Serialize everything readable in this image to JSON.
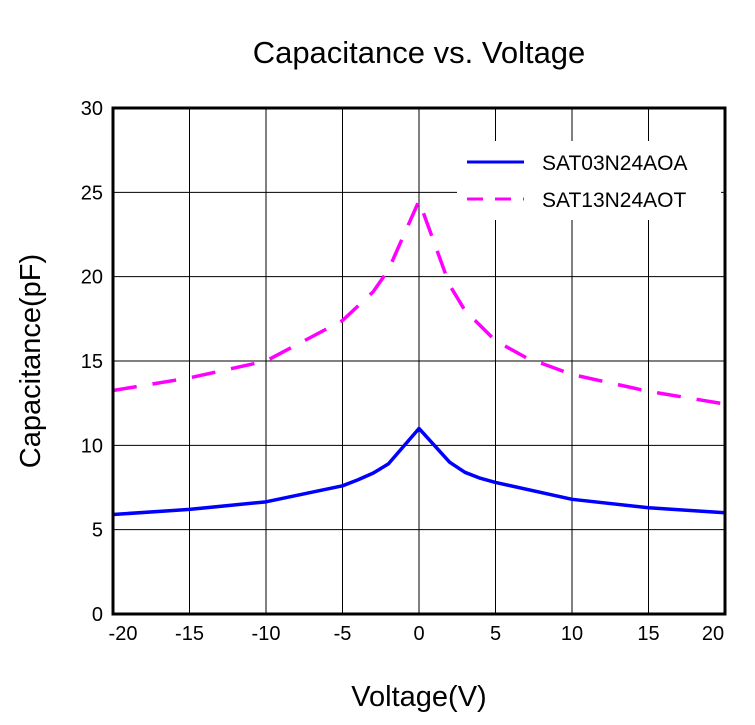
{
  "chart_data": {
    "type": "line",
    "title": "Capacitance vs. Voltage",
    "xlabel": "Voltage(V)",
    "ylabel": "Capacitance(pF)",
    "xlim": [
      -20,
      20
    ],
    "ylim": [
      0,
      30
    ],
    "xticks": [
      -20,
      -15,
      -10,
      -5,
      0,
      5,
      10,
      15,
      20
    ],
    "yticks": [
      0,
      5,
      10,
      15,
      20,
      25,
      30
    ],
    "grid": true,
    "legend_position": "top-right",
    "series": [
      {
        "name": "SAT03N24AOA",
        "color": "#0000ff",
        "style": "solid",
        "x": [
          -20,
          -15,
          -10,
          -5,
          -4,
          -3,
          -2,
          0,
          2,
          3,
          4,
          5,
          10,
          15,
          20
        ],
        "y": [
          5.9,
          6.2,
          6.65,
          7.6,
          7.95,
          8.35,
          8.9,
          11.0,
          9.0,
          8.4,
          8.05,
          7.8,
          6.8,
          6.3,
          6.0
        ]
      },
      {
        "name": "SAT13N24AOT",
        "color": "#ff00ff",
        "style": "dashed",
        "x": [
          -20,
          -15,
          -10,
          -5,
          -3,
          -2,
          0,
          2,
          3,
          5,
          7,
          10,
          15,
          20
        ],
        "y": [
          13.25,
          14.0,
          15.0,
          17.4,
          19.1,
          20.4,
          24.5,
          19.5,
          18.0,
          16.2,
          15.2,
          14.2,
          13.2,
          12.45
        ]
      }
    ]
  }
}
